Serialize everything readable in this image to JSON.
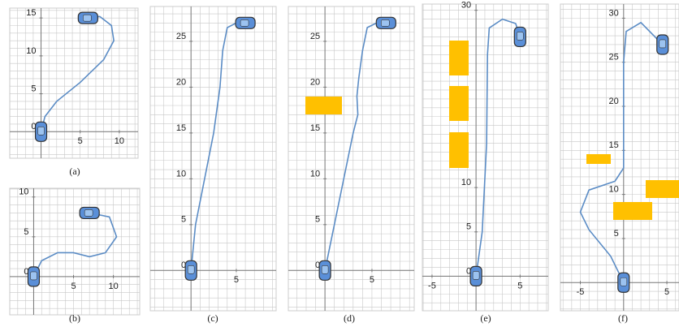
{
  "chart_data": [
    {
      "type": "line",
      "caption": "(a)",
      "xlim": [
        -4,
        12.4
      ],
      "ylim": [
        -3.5,
        16.3
      ],
      "xticks": [
        5,
        10
      ],
      "yticks": [
        0,
        5,
        10,
        15
      ],
      "grid": true,
      "series": [
        {
          "color": "#5b8cc5",
          "x": [
            0,
            0.5,
            2,
            5,
            8,
            9.3,
            9,
            7.5,
            6
          ],
          "values": [
            0,
            2,
            4,
            6.5,
            9.5,
            12,
            14,
            15.2,
            15
          ]
        }
      ]
    },
    {
      "type": "line",
      "caption": "(b)",
      "xlim": [
        -3,
        13.3
      ],
      "ylim": [
        -4.8,
        11.1
      ],
      "xticks": [
        5,
        10
      ],
      "yticks": [
        0,
        5,
        10
      ],
      "grid": true,
      "series": [
        {
          "color": "#5b8cc5",
          "x": [
            0,
            1,
            3,
            5,
            7,
            9,
            10.4,
            9.5,
            7
          ],
          "values": [
            0,
            2,
            3,
            3,
            2.5,
            3,
            5,
            7.5,
            8
          ]
        }
      ]
    },
    {
      "type": "line",
      "caption": "(c)",
      "xlim": [
        -4.5,
        9.4
      ],
      "ylim": [
        -4.4,
        28.8
      ],
      "xticks": [
        5
      ],
      "yticks": [
        0,
        5,
        10,
        15,
        20,
        25
      ],
      "grid": true,
      "series": [
        {
          "color": "#5b8cc5",
          "x": [
            0,
            0.5,
            1.5,
            2.5,
            3.2,
            3.5,
            4,
            5,
            6
          ],
          "values": [
            0,
            5,
            10,
            15,
            20,
            24,
            26.5,
            27,
            27
          ]
        }
      ]
    },
    {
      "type": "line",
      "caption": "(d)",
      "xlim": [
        -3.9,
        9.5
      ],
      "ylim": [
        -4.4,
        28.8
      ],
      "xticks": [
        5
      ],
      "yticks": [
        0,
        5,
        10,
        15,
        20,
        25
      ],
      "grid": true,
      "series": [
        {
          "color": "#5b8cc5",
          "x": [
            0,
            1,
            2,
            3,
            3.5,
            3.4,
            3.6,
            4,
            4.5,
            5.5,
            6.5
          ],
          "values": [
            0,
            5,
            10,
            15,
            17,
            19,
            21,
            24,
            26.5,
            27,
            27
          ]
        }
      ]
    },
    {
      "type": "line",
      "caption": "(e)",
      "xlim": [
        -6.1,
        8.2
      ],
      "ylim": [
        -3.9,
        30.7
      ],
      "xticks": [
        -5,
        5
      ],
      "yticks": [
        0,
        5,
        10,
        30
      ],
      "grid": true,
      "series": [
        {
          "color": "#5b8cc5",
          "x": [
            0,
            0.7,
            1.2,
            1.3,
            1.5,
            3,
            4.5,
            5
          ],
          "values": [
            0,
            5,
            15,
            25,
            28,
            29,
            28.5,
            27
          ]
        }
      ]
    },
    {
      "type": "line",
      "caption": "(f)",
      "xlim": [
        -7.3,
        6.4
      ],
      "ylim": [
        -3.2,
        31.6
      ],
      "xticks": [
        -5,
        5
      ],
      "yticks": [
        5,
        10,
        15,
        20,
        25,
        30
      ],
      "grid": true,
      "series": [
        {
          "color": "#5b8cc5",
          "x": [
            0,
            -1.5,
            -4,
            -5,
            -4,
            -1,
            0,
            0,
            0,
            0.3,
            2,
            3.5,
            4.5
          ],
          "values": [
            0,
            3,
            6,
            8,
            10.5,
            11.5,
            13,
            18,
            25,
            28.5,
            29.5,
            28,
            27
          ]
        }
      ]
    }
  ]
}
